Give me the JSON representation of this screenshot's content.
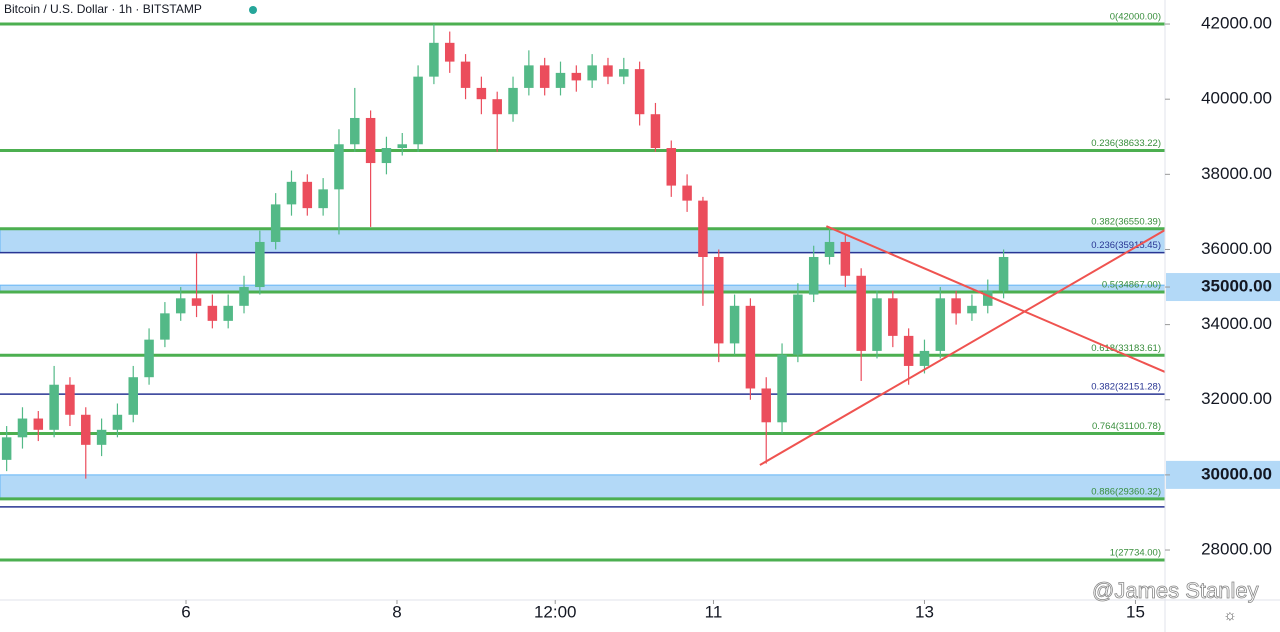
{
  "chart_data": {
    "type": "candlestick",
    "title": "Bitcoin / U.S. Dollar · 1h · BITSTAMP",
    "watermark": "@James Stanley",
    "up_color": "#53b987",
    "down_color": "#eb4d5c",
    "xlim": [
      4.237,
      15.28
    ],
    "ylim": [
      26670,
      42640
    ],
    "xticks": [
      6,
      8,
      {
        "value": 9.5,
        "label": "12:00"
      },
      11,
      13,
      15
    ],
    "yticks": [
      {
        "value": 28000,
        "label": "28000.00"
      },
      {
        "value": 30000,
        "label": "30000.00",
        "highlight": true
      },
      {
        "value": 32000,
        "label": "32000.00"
      },
      {
        "value": 34000,
        "label": "34000.00"
      },
      {
        "value": 35000,
        "label": "35000.00",
        "highlight": true
      },
      {
        "value": 36000,
        "label": "36000.00"
      },
      {
        "value": 38000,
        "label": "38000.00"
      },
      {
        "value": 40000,
        "label": "40000.00"
      },
      {
        "value": 42000,
        "label": "42000.00"
      }
    ],
    "x": [
      4.3,
      4.45,
      4.6,
      4.75,
      4.9,
      5.05,
      5.2,
      5.35,
      5.5,
      5.65,
      5.8,
      5.95,
      6.1,
      6.25,
      6.4,
      6.55,
      6.7,
      6.85,
      7.0,
      7.15,
      7.3,
      7.45,
      7.6,
      7.75,
      7.9,
      8.05,
      8.2,
      8.35,
      8.5,
      8.65,
      8.8,
      8.95,
      9.1,
      9.25,
      9.4,
      9.55,
      9.7,
      9.85,
      10.0,
      10.15,
      10.3,
      10.45,
      10.6,
      10.75,
      10.9,
      11.05,
      11.2,
      11.35,
      11.5,
      11.65,
      11.8,
      11.95,
      12.1,
      12.25,
      12.4,
      12.55,
      12.7,
      12.85,
      13.0,
      13.15,
      13.3,
      13.45,
      13.6,
      13.75
    ],
    "open": [
      30400,
      31000,
      31500,
      31200,
      32400,
      31600,
      30800,
      31200,
      31600,
      32600,
      33600,
      34300,
      34700,
      34500,
      34100,
      34500,
      35000,
      36200,
      37200,
      37800,
      37100,
      37600,
      38800,
      39500,
      38300,
      38700,
      38800,
      40600,
      41500,
      41000,
      40300,
      40000,
      39600,
      40300,
      40900,
      40300,
      40700,
      40500,
      40900,
      40600,
      40800,
      39600,
      38700,
      37700,
      37300,
      35800,
      33500,
      34500,
      32300,
      31400,
      33200,
      34800,
      35800,
      36200,
      35300,
      33300,
      34700,
      33700,
      32900,
      33300,
      34700,
      34300,
      34500,
      34900
    ],
    "high": [
      31300,
      31800,
      31700,
      32900,
      32600,
      31800,
      31500,
      31900,
      32900,
      33900,
      34600,
      35000,
      35900,
      34800,
      34800,
      35300,
      36500,
      37500,
      38100,
      38000,
      37900,
      39200,
      40300,
      39700,
      39000,
      39100,
      40900,
      42000,
      41800,
      41200,
      40600,
      40200,
      40600,
      41300,
      41100,
      41000,
      40900,
      41200,
      41100,
      41100,
      41000,
      39900,
      38900,
      38000,
      37400,
      36000,
      34800,
      34700,
      32600,
      33500,
      35100,
      36100,
      36600,
      36400,
      35500,
      34900,
      34900,
      33900,
      33600,
      35000,
      34900,
      34800,
      35200,
      36000
    ],
    "low": [
      30100,
      30700,
      30900,
      31000,
      31300,
      29900,
      30500,
      31000,
      31400,
      32400,
      33400,
      34100,
      34200,
      33900,
      33900,
      34300,
      34800,
      36000,
      36900,
      36900,
      36900,
      36400,
      38600,
      36600,
      38000,
      38500,
      38600,
      40400,
      40700,
      40000,
      39600,
      38600,
      39400,
      40100,
      40100,
      40100,
      40200,
      40300,
      40400,
      40400,
      39300,
      38600,
      37400,
      37000,
      34500,
      33000,
      33200,
      32000,
      30300,
      31100,
      33000,
      34600,
      35600,
      35000,
      32500,
      33100,
      33400,
      32400,
      32700,
      33100,
      34000,
      34100,
      34300,
      34700
    ],
    "close": [
      31000,
      31500,
      31200,
      32400,
      31600,
      30800,
      31200,
      31600,
      32600,
      33600,
      34300,
      34700,
      34500,
      34100,
      34500,
      35000,
      36200,
      37200,
      37800,
      37100,
      37600,
      38800,
      39500,
      38300,
      38700,
      38800,
      40600,
      41500,
      41000,
      40300,
      40000,
      39600,
      40300,
      40900,
      40300,
      40700,
      40500,
      40900,
      40600,
      40800,
      39600,
      38700,
      37700,
      37300,
      35800,
      33500,
      34500,
      32300,
      31400,
      33200,
      34800,
      35800,
      36200,
      35300,
      33300,
      34700,
      33700,
      32900,
      33300,
      34700,
      34300,
      34500,
      34900,
      35800
    ],
    "zones": [
      {
        "low": 35915.45,
        "high": 36550.39,
        "color": "#b3d9f7"
      },
      {
        "low": 34867,
        "high": 35050,
        "color": "#b3d9f7"
      },
      {
        "low": 29360.32,
        "high": 30000,
        "color": "#b3d9f7"
      }
    ],
    "levels": [
      {
        "value": 42000,
        "label": "0(42000.00)",
        "color": "#4caf50"
      },
      {
        "value": 38633.22,
        "label": "0.236(38633.22)",
        "color": "#4caf50"
      },
      {
        "value": 36550.39,
        "label": "0.382(36550.39)",
        "color": "#4caf50"
      },
      {
        "value": 35915.45,
        "label": "0.236(35915.45)",
        "color": "#283593"
      },
      {
        "value": 34867,
        "label": "0.5(34867.00)",
        "color": "#4caf50"
      },
      {
        "value": 33183.61,
        "label": "0.618(33183.61)",
        "color": "#4caf50"
      },
      {
        "value": 32151.28,
        "label": "0.382(32151.28)",
        "color": "#283593"
      },
      {
        "value": 31100.78,
        "label": "0.764(31100.78)",
        "color": "#4caf50"
      },
      {
        "value": 29360.32,
        "label": "0.886(29360.32)",
        "color": "#4caf50"
      },
      {
        "value": 29150,
        "color": "#283593"
      },
      {
        "value": 27734,
        "label": "1(27734.00)",
        "color": "#4caf50"
      }
    ],
    "trendlines": [
      {
        "x": [
          12.07,
          15.28
        ],
        "y": [
          36620,
          32740
        ],
        "color": "#ef5350"
      },
      {
        "x": [
          11.44,
          15.28
        ],
        "y": [
          30262,
          36517
        ],
        "color": "#ef5350"
      }
    ]
  }
}
